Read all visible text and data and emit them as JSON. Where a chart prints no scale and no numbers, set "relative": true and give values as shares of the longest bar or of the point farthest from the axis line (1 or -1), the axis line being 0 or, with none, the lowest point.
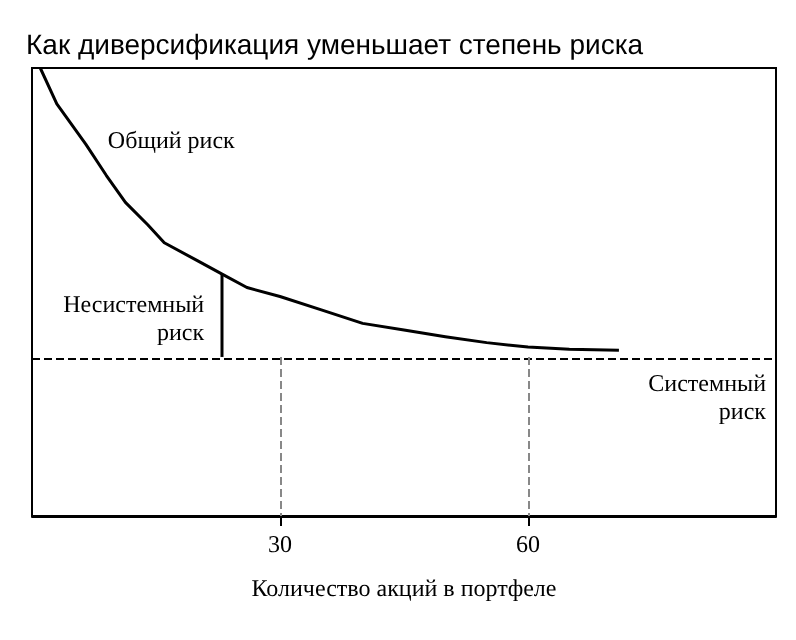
{
  "chart_data": {
    "type": "line",
    "title": "Как диверсификация уменьшает степень риска",
    "xlabel": "Количество акций в портфеле",
    "relative": true,
    "xlim": [
      0,
      90
    ],
    "xticks": [
      30,
      60
    ],
    "tick_labels": "x",
    "grid": false,
    "marker": "none",
    "line_style": "solid",
    "series": [
      {
        "color": "#000000",
        "x": [
          1,
          3,
          6.5,
          9,
          11.3,
          14,
          16,
          20,
          23,
          26,
          30,
          35,
          40,
          45,
          50,
          55,
          60,
          65,
          71
        ],
        "values": [
          1.0,
          0.92,
          0.83,
          0.76,
          0.7,
          0.65,
          0.61,
          0.57,
          0.54,
          0.51,
          0.49,
          0.46,
          0.43,
          0.415,
          0.4,
          0.387,
          0.377,
          0.372,
          0.37
        ]
      }
    ],
    "ref_lines": [
      {
        "axis": "y",
        "value": 0.355,
        "label": "Системный\nриск",
        "line_style": "dashed",
        "color": "#000000"
      },
      {
        "axis": "x",
        "value": 30,
        "line_style": "dashed",
        "color": "#888888"
      },
      {
        "axis": "x",
        "value": 60,
        "line_style": "dashed",
        "color": "#888888"
      }
    ],
    "annotations": [
      {
        "text": "Общий риск",
        "x": 7,
        "y": 0.83
      },
      {
        "text": "Несистемный\nриск",
        "x": 23,
        "y": 0.54
      }
    ]
  }
}
